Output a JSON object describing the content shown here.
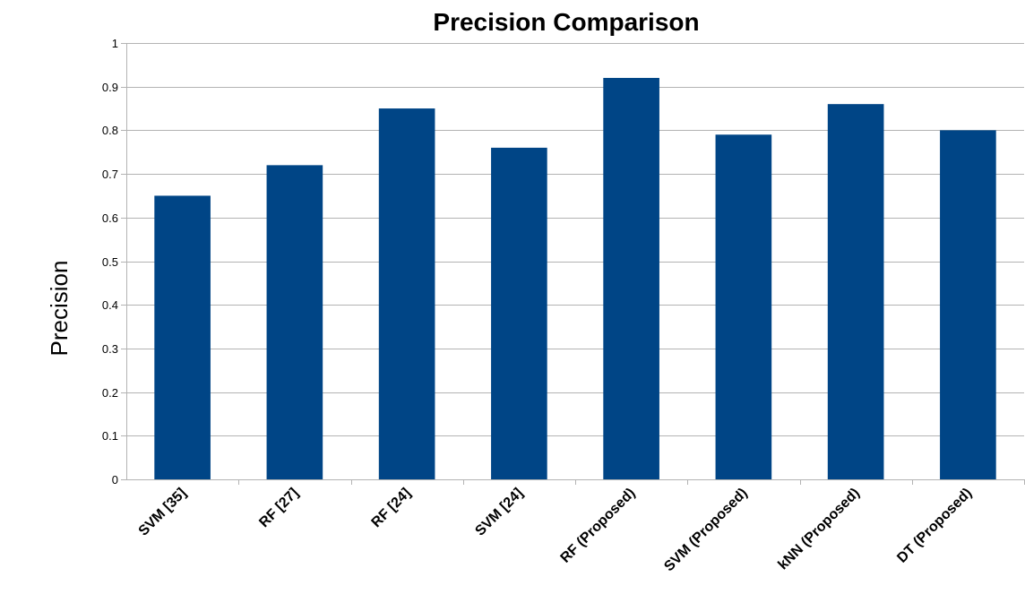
{
  "chart_data": {
    "type": "bar",
    "title": "Precision Comparison",
    "xlabel": "",
    "ylabel": "Precision",
    "ylim": [
      0,
      1
    ],
    "yticks": [
      "0",
      "0.1",
      "0.2",
      "0.3",
      "0.4",
      "0.5",
      "0.6",
      "0.7",
      "0.8",
      "0.9",
      "1"
    ],
    "categories": [
      "SVM [35]",
      "RF [27]",
      "RF [24]",
      "SVM [24]",
      "RF (Proposed)",
      "SVM (Proposed)",
      "kNN (Proposed)",
      "DT (Proposed)"
    ],
    "values": [
      0.65,
      0.72,
      0.85,
      0.76,
      0.92,
      0.79,
      0.86,
      0.8
    ],
    "bar_color": "#004586",
    "grid": true,
    "legend": false
  }
}
